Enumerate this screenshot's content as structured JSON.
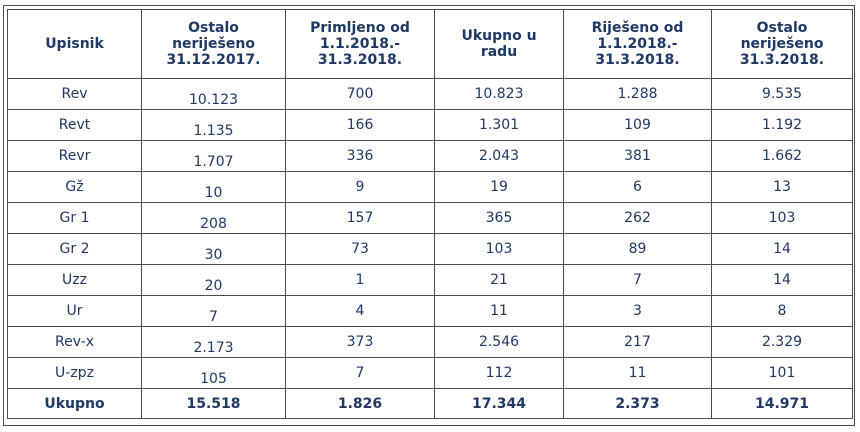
{
  "headers": [
    "Upisnik",
    "Ostalo\nneriješeno\n31.12.2017.",
    "Primljeno od\n1.1.2018.-\n31.3.2018.",
    "Ukupno u\nradu",
    "Riješeno od\n1.1.2018.-\n31.3.2018.",
    "Ostalo\nneriješeno\n31.3.2018."
  ],
  "rows": [
    [
      "Rev",
      "10.123",
      "700",
      "10.823",
      "1.288",
      "9.535"
    ],
    [
      "Revt",
      "1.135",
      "166",
      "1.301",
      "109",
      "1.192"
    ],
    [
      "Revr",
      "1.707",
      "336",
      "2.043",
      "381",
      "1.662"
    ],
    [
      "Gž",
      "10",
      "9",
      "19",
      "6",
      "13"
    ],
    [
      "Gr 1",
      "208",
      "157",
      "365",
      "262",
      "103"
    ],
    [
      "Gr 2",
      "30",
      "73",
      "103",
      "89",
      "14"
    ],
    [
      "Uzz",
      "20",
      "1",
      "21",
      "7",
      "14"
    ],
    [
      "Ur",
      "7",
      "4",
      "11",
      "3",
      "8"
    ],
    [
      "Rev-x",
      "2.173",
      "373",
      "2.546",
      "217",
      "2.329"
    ],
    [
      "U-zpz",
      "105",
      "7",
      "112",
      "11",
      "101"
    ]
  ],
  "total": [
    "Ukupno",
    "15.518",
    "1.826",
    "17.344",
    "2.373",
    "14.971"
  ]
}
